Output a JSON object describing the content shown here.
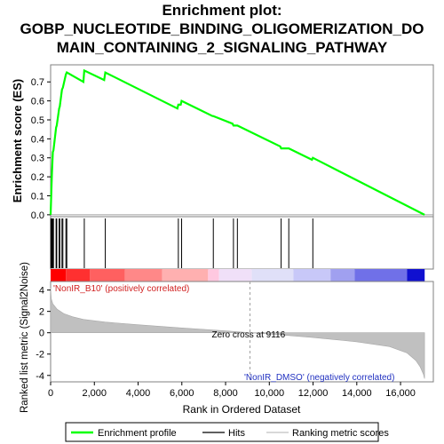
{
  "title_line1": "Enrichment plot:",
  "title_line2": "GOBP_NUCLEOTIDE_BINDING_OLIGOMERIZATION_DO",
  "title_line3": "MAIN_CONTAINING_2_SIGNALING_PATHWAY",
  "chart_data": {
    "type": "line",
    "es_panel": {
      "ylabel": "Enrichment score (ES)",
      "yticks": [
        "0.0",
        "0.1",
        "0.2",
        "0.3",
        "0.4",
        "0.5",
        "0.6",
        "0.7"
      ],
      "ylim": [
        -0.01,
        0.79
      ],
      "series": [
        {
          "name": "Enrichment profile",
          "color": "#00ff00",
          "x": [
            0,
            40,
            60,
            100,
            130,
            250,
            280,
            390,
            420,
            520,
            560,
            700,
            740,
            1500,
            1540,
            2450,
            2500,
            5800,
            5840,
            5950,
            5990,
            7400,
            7440,
            8320,
            8360,
            8500,
            8540,
            10500,
            10540,
            10850,
            10890,
            11950,
            11990,
            17100
          ],
          "y": [
            0.0,
            0.15,
            0.22,
            0.33,
            0.34,
            0.46,
            0.47,
            0.56,
            0.57,
            0.66,
            0.67,
            0.74,
            0.75,
            0.7,
            0.76,
            0.71,
            0.75,
            0.56,
            0.58,
            0.58,
            0.6,
            0.52,
            0.52,
            0.48,
            0.47,
            0.47,
            0.47,
            0.36,
            0.35,
            0.35,
            0.35,
            0.29,
            0.3,
            0.0
          ]
        }
      ]
    },
    "hits_x": [
      10,
      40,
      60,
      100,
      130,
      250,
      280,
      390,
      420,
      520,
      560,
      700,
      740,
      1540,
      2500,
      5840,
      5990,
      7440,
      8360,
      8540,
      10540,
      10890,
      11990
    ],
    "rank_panel": {
      "ylabel": "Ranked list metric (Signal2Noise)",
      "xlabel": "Rank in Ordered Dataset",
      "yticks": [
        "4",
        "2",
        "0",
        "-2",
        "-4"
      ],
      "ylim": [
        -4.6,
        4.8
      ],
      "xticks": [
        "0",
        "2,000",
        "4,000",
        "6,000",
        "8,000",
        "10,000",
        "12,000",
        "14,000",
        "16,000"
      ],
      "xlim": [
        0,
        17500
      ],
      "n_genes": 17100,
      "metric_profile_x": [
        0,
        30,
        100,
        300,
        600,
        1000,
        1500,
        2500,
        4000,
        6000,
        8000,
        9116,
        10000,
        12000,
        14000,
        15500,
        16300,
        16700,
        16900,
        17050,
        17100
      ],
      "metric_profile_y": [
        4.2,
        3.2,
        2.7,
        2.2,
        1.8,
        1.5,
        1.25,
        1.0,
        0.75,
        0.45,
        0.18,
        0.0,
        -0.12,
        -0.45,
        -0.85,
        -1.3,
        -1.9,
        -2.6,
        -3.2,
        -3.9,
        -4.3
      ],
      "zero_cross_label": "Zero cross at 9116",
      "zero_cross": 9116,
      "pos_label": "'NonIR_B10' (positively correlated)",
      "neg_label": "'NonIR_DMSO' (negatively correlated)"
    },
    "legend": {
      "items": [
        {
          "label": "Enrichment profile",
          "color": "#00ff00"
        },
        {
          "label": "Hits",
          "color": "#000000"
        },
        {
          "label": "Ranking metric scores",
          "color": "#c0c0c0"
        }
      ]
    }
  }
}
